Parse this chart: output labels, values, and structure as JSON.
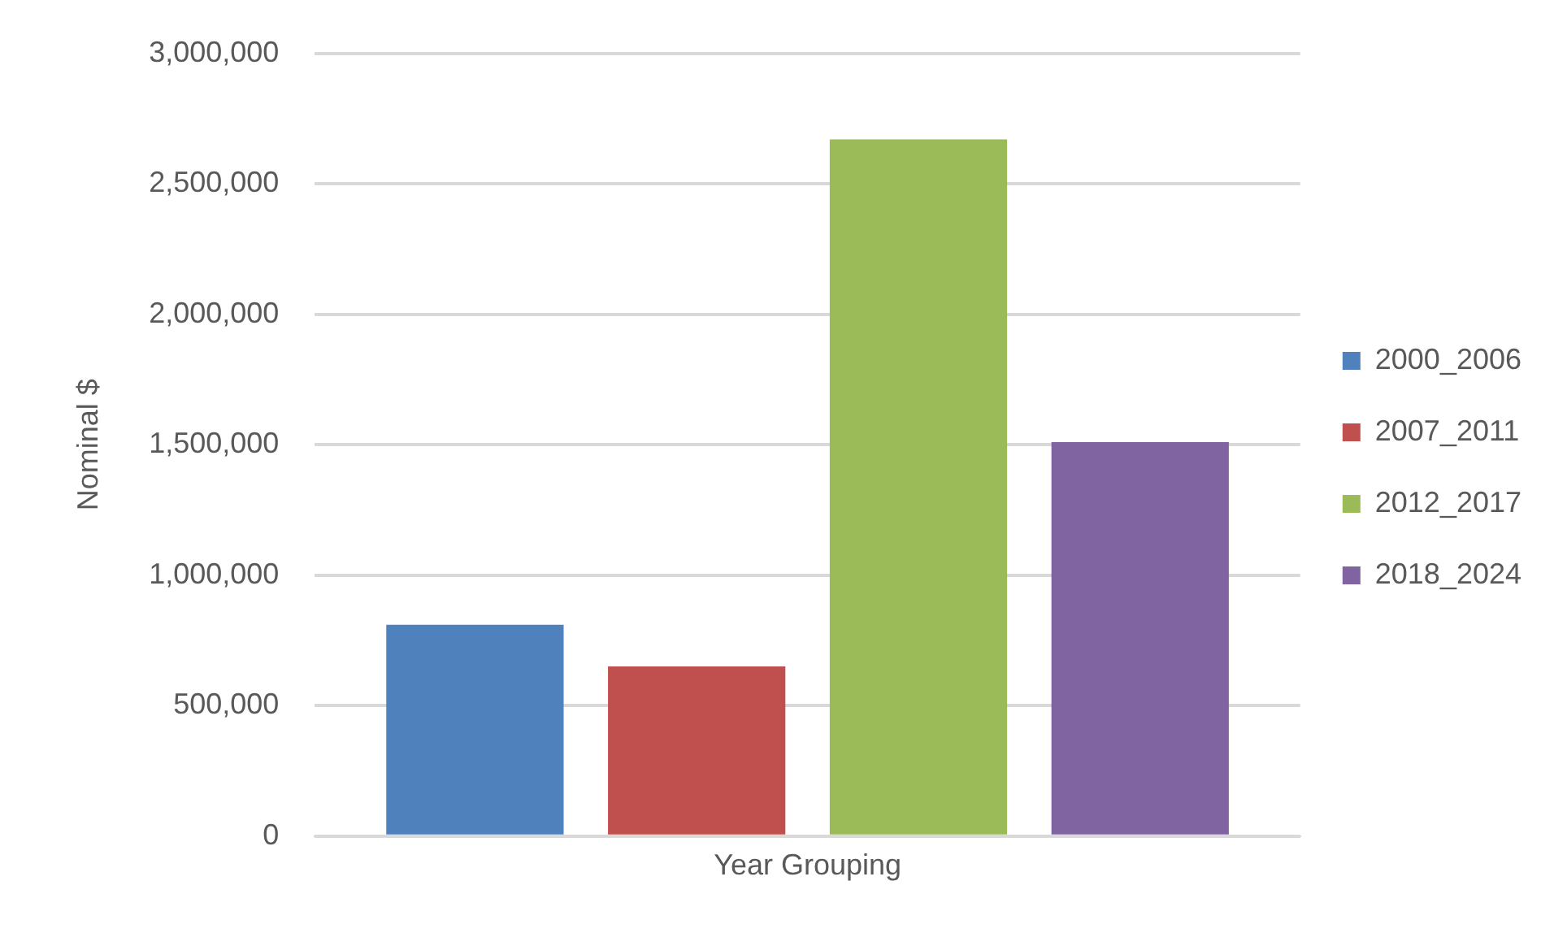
{
  "chart_data": {
    "type": "bar",
    "ylabel": "Nominal $",
    "categories": [
      "Year Grouping"
    ],
    "series": [
      {
        "name": "2000_2006",
        "color": "#4f81bd",
        "values": [
          810000
        ]
      },
      {
        "name": "2007_2011",
        "color": "#c0504d",
        "values": [
          650000
        ]
      },
      {
        "name": "2012_2017",
        "color": "#9bbb59",
        "values": [
          2670000
        ]
      },
      {
        "name": "2018_2024",
        "color": "#8064a2",
        "values": [
          1510000
        ]
      }
    ],
    "ylim": [
      0,
      3000000
    ],
    "yticks": [
      {
        "value": 0,
        "label": "0"
      },
      {
        "value": 500000,
        "label": "500,000"
      },
      {
        "value": 1000000,
        "label": "1,000,000"
      },
      {
        "value": 1500000,
        "label": "1,500,000"
      },
      {
        "value": 2000000,
        "label": "2,000,000"
      },
      {
        "value": 2500000,
        "label": "2,500,000"
      },
      {
        "value": 3000000,
        "label": "3,000,000"
      }
    ],
    "grid": "y",
    "legend": "right"
  }
}
